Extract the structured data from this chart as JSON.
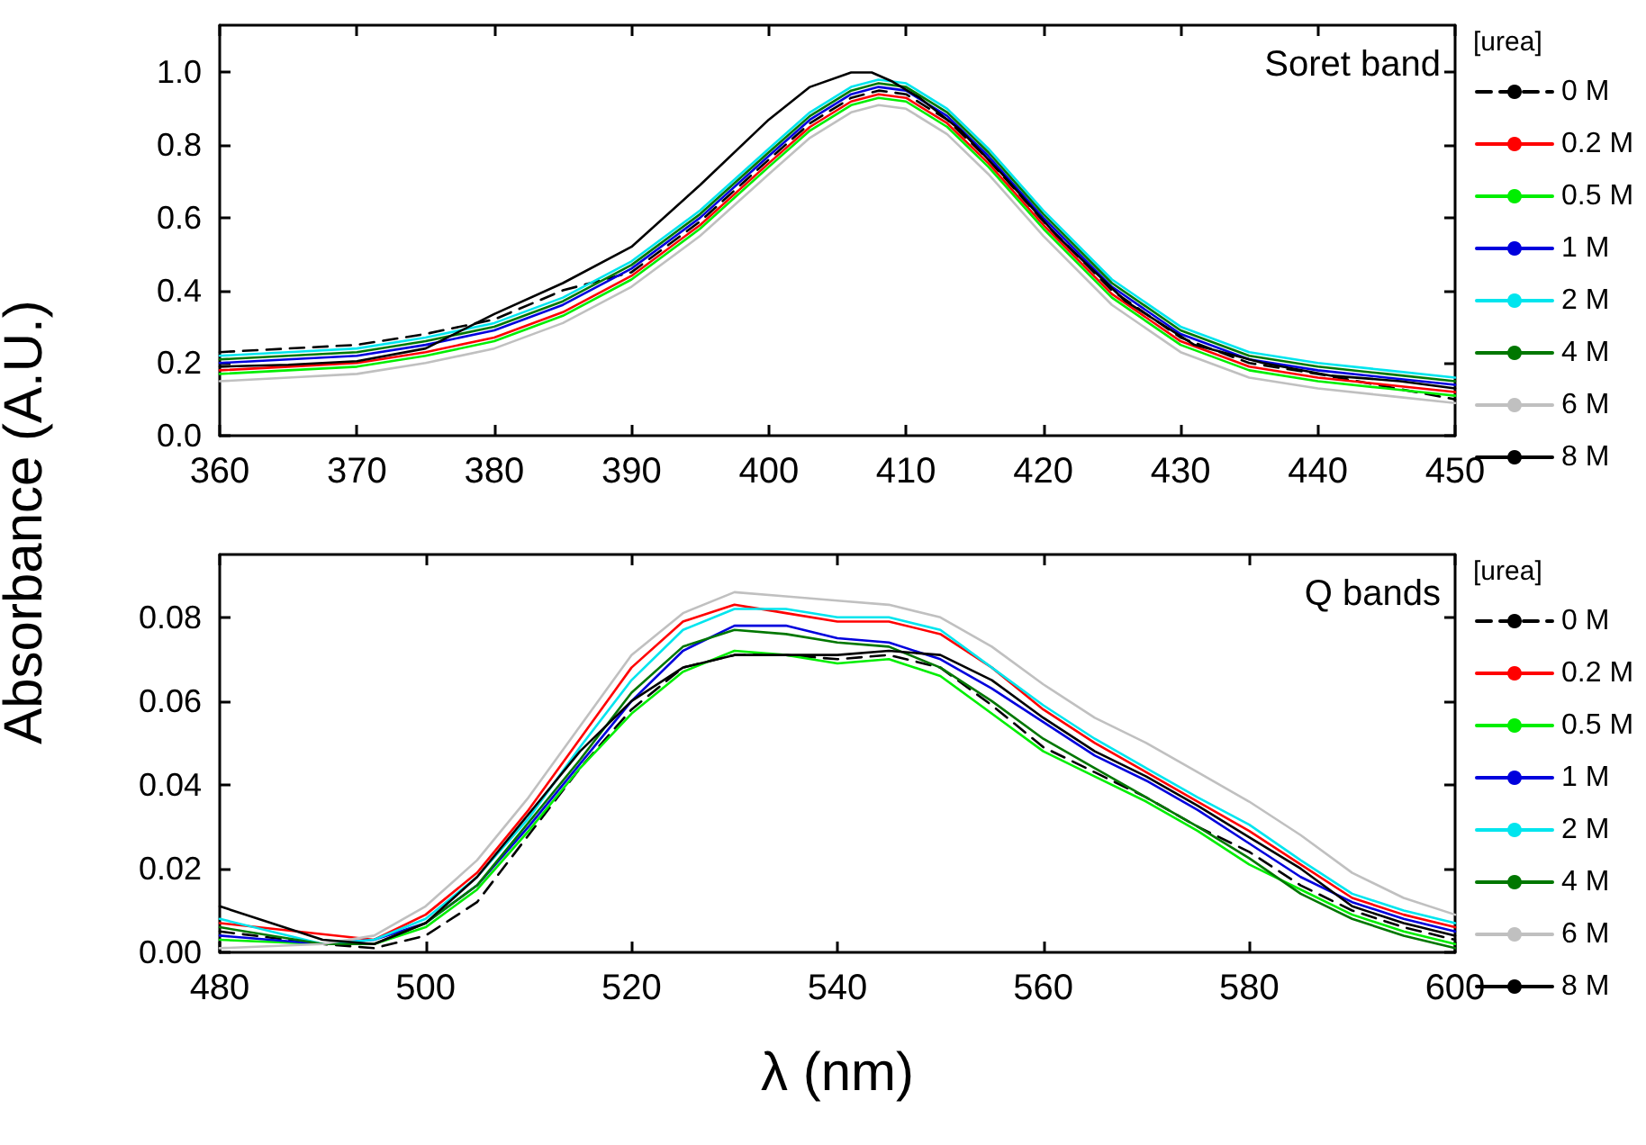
{
  "chart_data": [
    {
      "type": "line",
      "ylabel": "Absorbance (A.U.)",
      "legend_title": "[urea]",
      "legend": "right",
      "annotations": [
        "Soret band"
      ],
      "marker": "none",
      "grid": false,
      "x": [
        360,
        365,
        370,
        375,
        380,
        385,
        390,
        395,
        400,
        403,
        406,
        408,
        410,
        413,
        416,
        420,
        425,
        430,
        435,
        440,
        445,
        450
      ],
      "xlim": [
        360,
        450
      ],
      "xticks": [
        360,
        370,
        380,
        390,
        400,
        410,
        420,
        430,
        440,
        450
      ],
      "ylim": [
        0,
        1.13
      ],
      "yticks": [
        {
          "value": 0,
          "label": "0.0"
        },
        {
          "value": 0.2,
          "label": "0.2"
        },
        {
          "value": 0.4,
          "label": "0.4"
        },
        {
          "value": 0.6,
          "label": "0.6"
        },
        {
          "value": 0.8,
          "label": "0.8"
        },
        {
          "value": 1,
          "label": "1.0"
        }
      ],
      "series": [
        {
          "name": "0 M",
          "color": "#000000",
          "line_style": "dashed",
          "values": [
            0.23,
            0.24,
            0.25,
            0.28,
            0.32,
            0.4,
            0.45,
            0.59,
            0.76,
            0.86,
            0.93,
            0.95,
            0.94,
            0.87,
            0.76,
            0.59,
            0.4,
            0.27,
            0.2,
            0.17,
            0.135,
            0.1
          ]
        },
        {
          "name": "0.2 M",
          "color": "#ff0000",
          "values": [
            0.18,
            0.19,
            0.2,
            0.23,
            0.27,
            0.34,
            0.44,
            0.58,
            0.75,
            0.85,
            0.92,
            0.94,
            0.93,
            0.86,
            0.75,
            0.58,
            0.39,
            0.26,
            0.19,
            0.16,
            0.14,
            0.12
          ]
        },
        {
          "name": "0.5 M",
          "color": "#00ee00",
          "values": [
            0.17,
            0.18,
            0.19,
            0.22,
            0.26,
            0.33,
            0.43,
            0.57,
            0.74,
            0.84,
            0.91,
            0.93,
            0.92,
            0.85,
            0.74,
            0.57,
            0.38,
            0.25,
            0.18,
            0.15,
            0.13,
            0.11
          ]
        },
        {
          "name": "1 M",
          "color": "#0000dd",
          "values": [
            0.2,
            0.21,
            0.22,
            0.25,
            0.29,
            0.36,
            0.46,
            0.6,
            0.77,
            0.87,
            0.94,
            0.96,
            0.95,
            0.88,
            0.77,
            0.6,
            0.41,
            0.28,
            0.21,
            0.18,
            0.16,
            0.14
          ]
        },
        {
          "name": "2 M",
          "color": "#00e5ee",
          "values": [
            0.22,
            0.23,
            0.24,
            0.27,
            0.31,
            0.38,
            0.48,
            0.62,
            0.79,
            0.89,
            0.96,
            0.98,
            0.97,
            0.9,
            0.79,
            0.62,
            0.43,
            0.3,
            0.23,
            0.2,
            0.18,
            0.16
          ]
        },
        {
          "name": "4 M",
          "color": "#007700",
          "values": [
            0.21,
            0.22,
            0.23,
            0.26,
            0.3,
            0.37,
            0.47,
            0.61,
            0.78,
            0.88,
            0.95,
            0.97,
            0.96,
            0.89,
            0.78,
            0.61,
            0.42,
            0.29,
            0.22,
            0.19,
            0.17,
            0.15
          ]
        },
        {
          "name": "6 M",
          "color": "#c0c0c0",
          "values": [
            0.15,
            0.16,
            0.17,
            0.2,
            0.24,
            0.31,
            0.41,
            0.55,
            0.72,
            0.82,
            0.89,
            0.91,
            0.9,
            0.83,
            0.72,
            0.55,
            0.36,
            0.23,
            0.16,
            0.13,
            0.11,
            0.09
          ]
        },
        {
          "name": "8 M",
          "color": "#000000",
          "x": [
            360,
            365,
            370,
            375,
            380,
            385,
            390,
            395,
            400,
            403,
            406,
            407.5,
            409,
            411,
            414,
            417,
            421,
            426,
            431,
            436,
            441,
            446,
            450
          ],
          "values": [
            0.19,
            0.195,
            0.205,
            0.24,
            0.335,
            0.42,
            0.52,
            0.69,
            0.87,
            0.96,
            1.0,
            1.0,
            0.975,
            0.93,
            0.84,
            0.72,
            0.55,
            0.37,
            0.25,
            0.2,
            0.165,
            0.15,
            0.13
          ]
        }
      ]
    },
    {
      "type": "line",
      "xlabel": "λ (nm)",
      "legend_title": "[urea]",
      "legend": "right",
      "annotations": [
        "Q bands"
      ],
      "marker": "none",
      "grid": false,
      "x": [
        480,
        490,
        495,
        500,
        505,
        510,
        515,
        520,
        525,
        530,
        535,
        540,
        545,
        550,
        555,
        560,
        565,
        570,
        575,
        580,
        585,
        590,
        595,
        600
      ],
      "xlim": [
        480,
        600
      ],
      "xticks": [
        480,
        500,
        520,
        540,
        560,
        580,
        600
      ],
      "ylim": [
        0,
        0.095
      ],
      "yticks": [
        {
          "value": 0,
          "label": "0.00"
        },
        {
          "value": 0.02,
          "label": "0.02"
        },
        {
          "value": 0.04,
          "label": "0.04"
        },
        {
          "value": 0.06,
          "label": "0.06"
        },
        {
          "value": 0.08,
          "label": "0.08"
        }
      ],
      "series": [
        {
          "name": "0 M",
          "color": "#000000",
          "line_style": "dashed",
          "values": [
            0.005,
            0.002,
            0.001,
            0.004,
            0.012,
            0.028,
            0.044,
            0.058,
            0.068,
            0.071,
            0.071,
            0.07,
            0.071,
            0.068,
            0.059,
            0.049,
            0.043,
            0.037,
            0.03,
            0.024,
            0.016,
            0.01,
            0.006,
            0.003
          ]
        },
        {
          "name": "0.2 M",
          "color": "#ff0000",
          "values": [
            0.007,
            null,
            0.003,
            0.009,
            0.019,
            0.034,
            0.051,
            0.068,
            0.079,
            0.083,
            0.081,
            0.079,
            0.079,
            0.076,
            0.068,
            0.058,
            0.05,
            0.043,
            0.036,
            0.029,
            0.021,
            0.013,
            0.009,
            0.006
          ]
        },
        {
          "name": "0.5 M",
          "color": "#00ee00",
          "values": [
            0.003,
            0.002,
            0.002,
            0.006,
            0.015,
            0.029,
            0.044,
            0.057,
            0.067,
            0.072,
            0.071,
            0.069,
            0.07,
            0.066,
            0.057,
            0.048,
            0.042,
            0.036,
            0.029,
            0.021,
            0.015,
            0.009,
            0.005,
            0.002
          ]
        },
        {
          "name": "1 M",
          "color": "#0000dd",
          "values": [
            0.004,
            0.002,
            0.003,
            0.007,
            0.016,
            0.03,
            0.045,
            0.06,
            0.072,
            0.078,
            0.078,
            0.075,
            0.074,
            0.07,
            0.063,
            0.055,
            0.047,
            0.041,
            0.034,
            0.026,
            0.018,
            0.012,
            0.008,
            0.005
          ]
        },
        {
          "name": "2 M",
          "color": "#00e5ee",
          "values": [
            0.008,
            0.002,
            0.003,
            0.008,
            0.018,
            0.032,
            0.049,
            0.065,
            0.077,
            0.082,
            0.082,
            0.08,
            0.08,
            0.077,
            0.068,
            0.059,
            0.051,
            0.044,
            0.037,
            0.0305,
            0.022,
            0.014,
            0.01,
            0.007
          ]
        },
        {
          "name": "4 M",
          "color": "#007700",
          "values": [
            0.006,
            0.002,
            0.002,
            0.007,
            0.016,
            0.031,
            0.046,
            0.062,
            0.073,
            0.077,
            0.076,
            0.074,
            0.073,
            0.068,
            0.06,
            0.051,
            0.044,
            0.037,
            0.03,
            0.0225,
            0.014,
            0.008,
            0.004,
            0.001
          ]
        },
        {
          "name": "6 M",
          "color": "#c0c0c0",
          "values": [
            0.001,
            0.002,
            0.004,
            0.011,
            0.022,
            0.037,
            0.054,
            0.071,
            0.081,
            0.086,
            0.085,
            0.084,
            0.083,
            0.08,
            0.073,
            0.064,
            0.056,
            0.05,
            0.043,
            0.036,
            0.028,
            0.019,
            0.013,
            0.009
          ]
        },
        {
          "name": "8 M",
          "color": "#000000",
          "values": [
            0.011,
            0.003,
            0.002,
            0.007,
            0.018,
            0.033,
            0.048,
            0.06,
            0.068,
            0.071,
            0.071,
            0.071,
            0.072,
            0.071,
            0.065,
            0.056,
            0.048,
            0.042,
            0.035,
            0.0275,
            0.02,
            0.011,
            0.007,
            0.004
          ]
        }
      ]
    }
  ]
}
